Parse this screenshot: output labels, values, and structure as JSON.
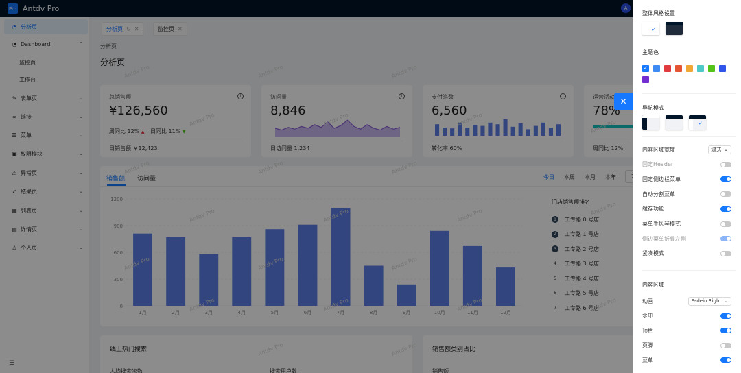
{
  "app": {
    "title": "Antdv Pro",
    "logo_text": "Pro",
    "avatar_text": "A"
  },
  "sidebar": {
    "items": [
      {
        "label": "分析页",
        "icon": "dashboard-icon"
      },
      {
        "label": "Dashboard",
        "icon": "dashboard-icon"
      },
      {
        "label": "监控页"
      },
      {
        "label": "工作台"
      },
      {
        "label": "表单页",
        "icon": "form-icon"
      },
      {
        "label": "链接",
        "icon": "link-icon"
      },
      {
        "label": "菜单",
        "icon": "menu-icon"
      },
      {
        "label": "权限模块",
        "icon": "lock-icon"
      },
      {
        "label": "异常页",
        "icon": "warning-icon"
      },
      {
        "label": "结果页",
        "icon": "check-circle-icon"
      },
      {
        "label": "列表页",
        "icon": "table-icon"
      },
      {
        "label": "详情页",
        "icon": "profile-icon"
      },
      {
        "label": "个人页",
        "icon": "user-icon"
      }
    ],
    "footer_icon": "menu-fold-icon",
    "footer_glyph": "☰"
  },
  "tabs": [
    {
      "label": "分析页",
      "reload": "↻",
      "close": "✕"
    },
    {
      "label": "监控页",
      "close": "✕"
    }
  ],
  "breadcrumb": "分析页",
  "page_title": "分析页",
  "watermark": "Antdv Pro",
  "cards": {
    "total_sales": {
      "label": "总销售额",
      "value": "¥126,560",
      "wow": "周同比 12%",
      "dod": "日同比 11%",
      "footer": "日销售额 ￥12,423"
    },
    "visits": {
      "label": "访问量",
      "value": "8,846",
      "footer": "日访问量 1,234",
      "trend": [
        0.5,
        0.4,
        0.55,
        0.45,
        0.6,
        0.5,
        0.7,
        0.55,
        0.85,
        0.5,
        0.65,
        0.95,
        0.6,
        0.45,
        0.7,
        0.5,
        0.4,
        0.6,
        0.45,
        0.55
      ]
    },
    "payments": {
      "label": "支付笔数",
      "value": "6,560",
      "footer": "转化率 60%",
      "bars": [
        0.7,
        0.5,
        0.45,
        0.8,
        0.5,
        0.65,
        0.6,
        0.8,
        0.7,
        1.0,
        0.55,
        0.75,
        0.4,
        0.6,
        0.8,
        0.5,
        0.7
      ]
    },
    "operations": {
      "label": "运营活动效果",
      "value": "78%",
      "footer": "周同比 12%",
      "progress": 0.78
    }
  },
  "sales": {
    "tabs": [
      "销售额",
      "访问量"
    ],
    "periods": [
      "今日",
      "本周",
      "本月",
      "本年"
    ],
    "date_text": "2"
  },
  "chart_data": {
    "type": "bar",
    "categories": [
      "1月",
      "2月",
      "3月",
      "4月",
      "5月",
      "6月",
      "7月",
      "8月",
      "9月",
      "10月",
      "11月",
      "12月"
    ],
    "values": [
      810,
      770,
      580,
      770,
      860,
      910,
      1100,
      450,
      240,
      840,
      670,
      430
    ],
    "ylim": [
      0,
      1200
    ],
    "yticks": [
      "0",
      "300",
      "600",
      "900",
      "1200"
    ],
    "color": "#5b7ee5"
  },
  "ranking": {
    "title": "门店销售额排名",
    "items": [
      {
        "no": "1",
        "name": "工专路 0 号店"
      },
      {
        "no": "2",
        "name": "工专路 1 号店"
      },
      {
        "no": "3",
        "name": "工专路 2 号店"
      },
      {
        "no": "4",
        "name": "工专路 3 号店"
      },
      {
        "no": "5",
        "name": "工专路 4 号店"
      },
      {
        "no": "6",
        "name": "工专路 5 号店"
      },
      {
        "no": "7",
        "name": "工专路 6 号店"
      }
    ]
  },
  "bottom": {
    "search_title": "线上热门搜索",
    "search_users_label": "人均搜索次数",
    "search_count_label": "搜索用户数",
    "category_title": "销售额类别占比",
    "category_sub": "销售额"
  },
  "drawer": {
    "close_glyph": "✕",
    "style_title": "整体风格设置",
    "theme_title": "主题色",
    "theme_colors": [
      "#1677ff",
      "#3d8bf2",
      "#e0393e",
      "#e55432",
      "#f0a734",
      "#4fc8c8",
      "#52c41a",
      "#2f54eb",
      "#722ed1"
    ],
    "nav_title": "导航模式",
    "settings": [
      {
        "label": "内容区域宽度",
        "type": "select",
        "value": "流式"
      },
      {
        "label": "固定Header",
        "type": "toggle",
        "on": false,
        "disabled": true
      },
      {
        "label": "固定侧边栏菜单",
        "type": "toggle",
        "on": true
      },
      {
        "label": "自动分割菜单",
        "type": "toggle",
        "on": false
      },
      {
        "label": "缓存功能",
        "type": "toggle",
        "on": true
      },
      {
        "label": "菜单手风琴模式",
        "type": "toggle",
        "on": false
      },
      {
        "label": "侧边菜单折叠左侧",
        "type": "toggle",
        "on": true,
        "disabled": true
      },
      {
        "label": "紧凑模式",
        "type": "toggle",
        "on": false
      }
    ],
    "content_title": "内容区域",
    "content_settings": [
      {
        "label": "动画",
        "type": "select",
        "value": "Fadein Right"
      },
      {
        "label": "水印",
        "type": "toggle",
        "on": true
      },
      {
        "label": "顶栏",
        "type": "toggle",
        "on": true
      },
      {
        "label": "页脚",
        "type": "toggle",
        "on": false
      },
      {
        "label": "菜单",
        "type": "toggle",
        "on": true
      }
    ]
  }
}
